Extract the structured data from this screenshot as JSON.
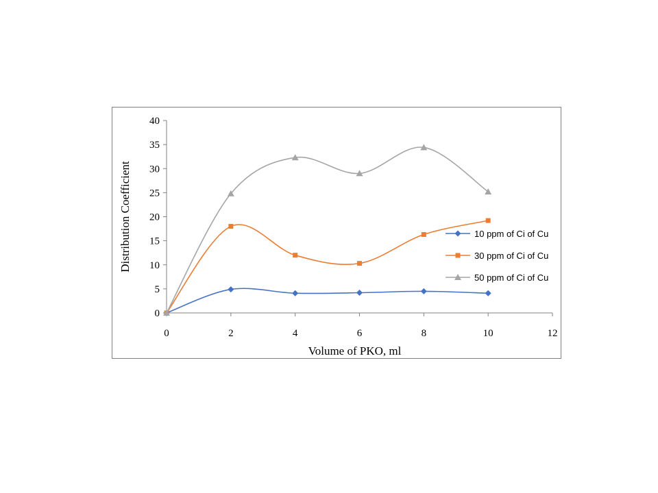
{
  "chart_data": {
    "type": "line",
    "title": "",
    "xlabel": "Volume of PKO, ml",
    "ylabel": "Distribution Coefficient",
    "xlim": [
      0,
      12
    ],
    "ylim": [
      0,
      40
    ],
    "xticks": [
      0,
      2,
      4,
      6,
      8,
      10,
      12
    ],
    "yticks": [
      0,
      5,
      10,
      15,
      20,
      25,
      30,
      35,
      40
    ],
    "grid": false,
    "legend_position": "right",
    "x": [
      0,
      2,
      4,
      6,
      8,
      10
    ],
    "series": [
      {
        "name": "10 ppm of Ci of Cu",
        "values": [
          0,
          4.9,
          4.1,
          4.2,
          4.5,
          4.1
        ],
        "color": "#4472C4",
        "marker": "diamond"
      },
      {
        "name": "30 ppm of Ci of Cu",
        "values": [
          0,
          18.0,
          12.0,
          10.3,
          16.3,
          19.2
        ],
        "color": "#ED7D31",
        "marker": "square"
      },
      {
        "name": "50 ppm of Ci of Cu",
        "values": [
          0,
          24.8,
          32.3,
          29.0,
          34.4,
          25.2
        ],
        "color": "#A5A5A5",
        "marker": "triangle"
      }
    ]
  }
}
